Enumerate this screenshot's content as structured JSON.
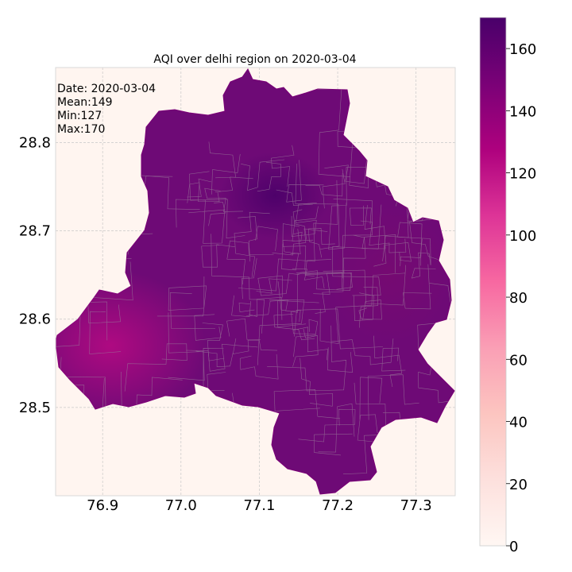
{
  "chart_data": {
    "type": "heatmap",
    "title": "AQI over delhi region on 2020-03-04",
    "xlabel": "",
    "ylabel": "",
    "x_ticks": [
      "76.9",
      "77.0",
      "77.1",
      "77.2",
      "77.3"
    ],
    "y_ticks": [
      "28.5",
      "28.6",
      "28.7",
      "28.8"
    ],
    "xlim": [
      76.84,
      77.35
    ],
    "ylim": [
      28.4,
      28.885
    ],
    "grid": true,
    "colormap": "RdPu",
    "colorbar": {
      "ticks": [
        "0",
        "20",
        "40",
        "60",
        "80",
        "100",
        "120",
        "140",
        "160"
      ],
      "range": [
        0,
        170
      ],
      "colors": [
        "#fff7f3",
        "#fde0dd",
        "#fcc5c0",
        "#fa9fb5",
        "#f768a1",
        "#dd3497",
        "#ae017e",
        "#7a0177",
        "#49006a"
      ]
    },
    "annotations": {
      "date": "Date: 2020-03-04",
      "mean": "Mean:149",
      "min": "Min:127",
      "max": "Max:170"
    },
    "stats": {
      "mean": 149,
      "min": 127,
      "max": 170
    },
    "background_color": "#fff5f0",
    "region_fill": "#6e0a76",
    "hotspots": [
      {
        "lon": 77.12,
        "lat": 28.74,
        "value": 170
      },
      {
        "lon": 76.91,
        "lat": 28.57,
        "value": 127
      }
    ]
  }
}
